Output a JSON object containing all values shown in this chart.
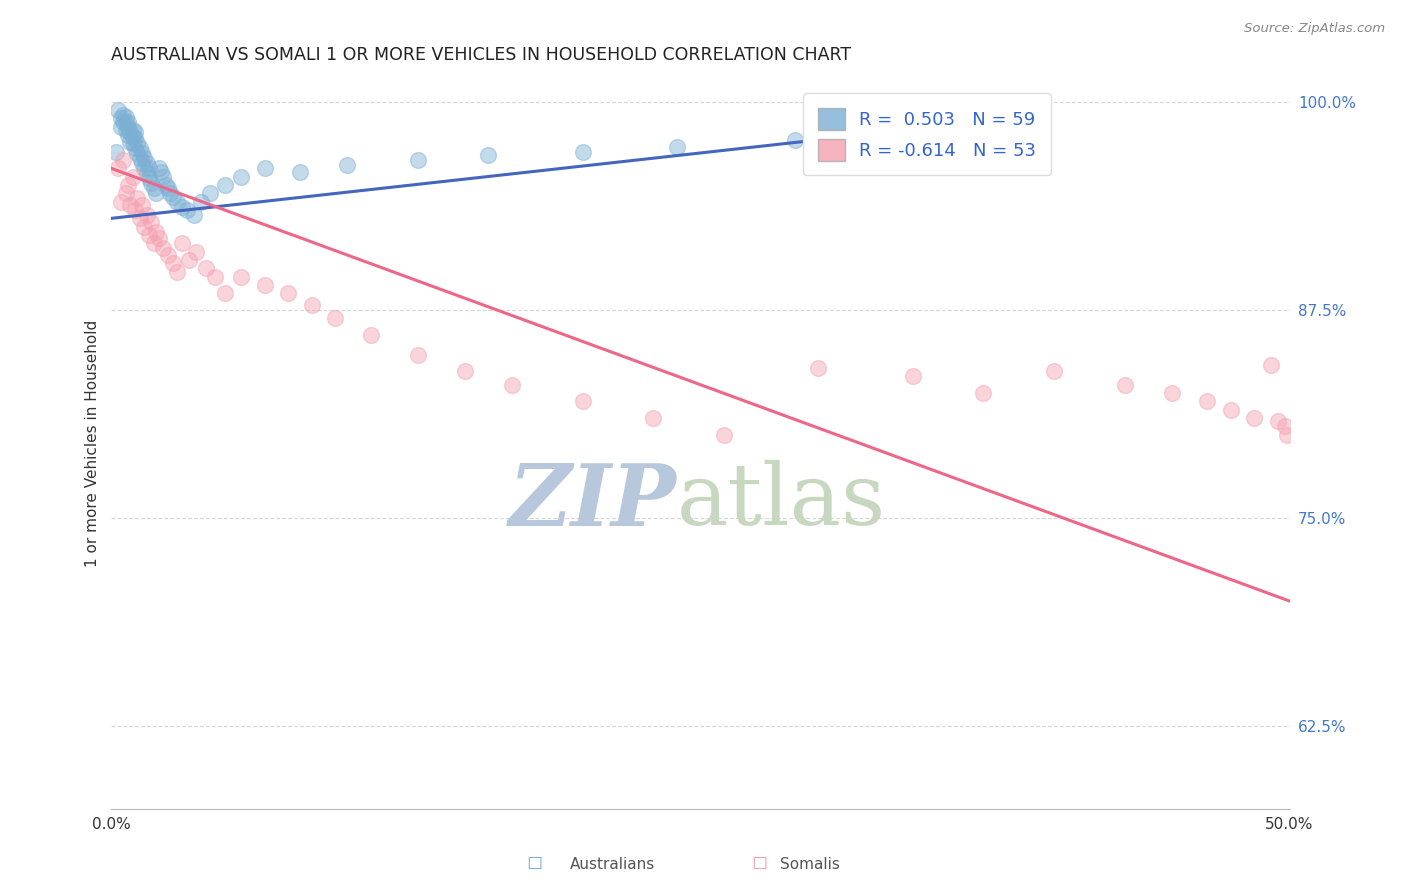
{
  "title": "AUSTRALIAN VS SOMALI 1 OR MORE VEHICLES IN HOUSEHOLD CORRELATION CHART",
  "source": "Source: ZipAtlas.com",
  "ylabel": "1 or more Vehicles in Household",
  "x_min": 0.0,
  "x_max": 0.5,
  "y_min": 0.575,
  "y_max": 1.015,
  "y_ticks": [
    0.625,
    0.75,
    0.875,
    1.0
  ],
  "y_tick_labels": [
    "62.5%",
    "75.0%",
    "87.5%",
    "100.0%"
  ],
  "x_tick_left": "0.0%",
  "x_tick_right": "50.0%",
  "watermark_zip": "ZIP",
  "watermark_atlas": "atlas",
  "legend_aus_r": "R =  0.503",
  "legend_aus_n": "N = 59",
  "legend_som_r": "R = -0.614",
  "legend_som_n": "N = 53",
  "aus_color": "#7BAFD4",
  "som_color": "#F4A0B0",
  "aus_line_color": "#4466BB",
  "som_line_color": "#EE6688",
  "aus_scatter_x": [
    0.002,
    0.003,
    0.004,
    0.004,
    0.005,
    0.005,
    0.006,
    0.006,
    0.006,
    0.007,
    0.007,
    0.007,
    0.008,
    0.008,
    0.009,
    0.009,
    0.009,
    0.01,
    0.01,
    0.01,
    0.011,
    0.011,
    0.012,
    0.012,
    0.013,
    0.013,
    0.014,
    0.014,
    0.015,
    0.015,
    0.016,
    0.016,
    0.017,
    0.018,
    0.019,
    0.02,
    0.021,
    0.022,
    0.023,
    0.024,
    0.025,
    0.026,
    0.028,
    0.03,
    0.032,
    0.035,
    0.038,
    0.042,
    0.048,
    0.055,
    0.065,
    0.08,
    0.1,
    0.13,
    0.16,
    0.2,
    0.24,
    0.29,
    0.35
  ],
  "aus_scatter_y": [
    0.97,
    0.995,
    0.985,
    0.99,
    0.988,
    0.992,
    0.983,
    0.987,
    0.991,
    0.98,
    0.984,
    0.988,
    0.976,
    0.982,
    0.975,
    0.979,
    0.983,
    0.972,
    0.978,
    0.982,
    0.969,
    0.975,
    0.966,
    0.972,
    0.963,
    0.969,
    0.96,
    0.966,
    0.957,
    0.963,
    0.954,
    0.96,
    0.951,
    0.948,
    0.945,
    0.96,
    0.958,
    0.955,
    0.95,
    0.948,
    0.945,
    0.943,
    0.94,
    0.937,
    0.935,
    0.932,
    0.94,
    0.945,
    0.95,
    0.955,
    0.96,
    0.958,
    0.962,
    0.965,
    0.968,
    0.97,
    0.973,
    0.977,
    0.982
  ],
  "som_scatter_x": [
    0.003,
    0.004,
    0.005,
    0.006,
    0.007,
    0.008,
    0.009,
    0.01,
    0.011,
    0.012,
    0.013,
    0.014,
    0.015,
    0.016,
    0.017,
    0.018,
    0.019,
    0.02,
    0.022,
    0.024,
    0.026,
    0.028,
    0.03,
    0.033,
    0.036,
    0.04,
    0.044,
    0.048,
    0.055,
    0.065,
    0.075,
    0.085,
    0.095,
    0.11,
    0.13,
    0.15,
    0.17,
    0.2,
    0.23,
    0.26,
    0.3,
    0.34,
    0.37,
    0.4,
    0.43,
    0.45,
    0.465,
    0.475,
    0.485,
    0.492,
    0.495,
    0.498,
    0.499
  ],
  "som_scatter_y": [
    0.96,
    0.94,
    0.965,
    0.945,
    0.95,
    0.938,
    0.955,
    0.935,
    0.942,
    0.93,
    0.938,
    0.925,
    0.932,
    0.92,
    0.928,
    0.915,
    0.922,
    0.918,
    0.912,
    0.908,
    0.903,
    0.898,
    0.915,
    0.905,
    0.91,
    0.9,
    0.895,
    0.885,
    0.895,
    0.89,
    0.885,
    0.878,
    0.87,
    0.86,
    0.848,
    0.838,
    0.83,
    0.82,
    0.81,
    0.8,
    0.84,
    0.835,
    0.825,
    0.838,
    0.83,
    0.825,
    0.82,
    0.815,
    0.81,
    0.842,
    0.808,
    0.805,
    0.8
  ],
  "aus_line_x0": 0.0,
  "aus_line_x1": 0.35,
  "aus_line_y0": 0.93,
  "aus_line_y1": 0.985,
  "som_line_x0": 0.0,
  "som_line_x1": 0.5,
  "som_line_y0": 0.96,
  "som_line_y1": 0.7,
  "bg_color": "#FFFFFF",
  "grid_color": "#CCCCCC",
  "title_fontsize": 12.5,
  "ylabel_fontsize": 11,
  "tick_fontsize": 11,
  "legend_fontsize": 13,
  "scatter_size": 130,
  "scatter_alpha": 0.45,
  "watermark_fontsize_zip": 62,
  "watermark_fontsize_atlas": 62,
  "watermark_color": "#C8D8EA"
}
